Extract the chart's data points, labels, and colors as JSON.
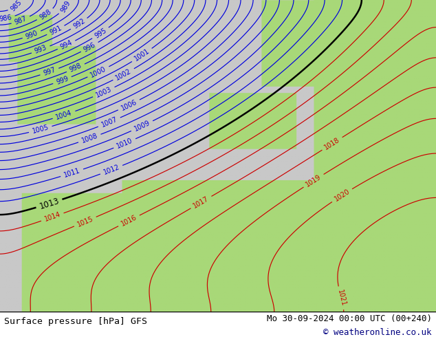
{
  "title_left": "Surface pressure [hPa] GFS",
  "title_right": "Mo 30-09-2024 00:00 UTC (00+240)",
  "copyright": "© weatheronline.co.uk",
  "bg_color_land": "#a8d878",
  "bg_color_sea": "#c8c8c8",
  "contour_blue_color": "#0000dd",
  "contour_black_color": "#000000",
  "contour_red_color": "#cc0000",
  "bottom_bar_height": 0.075,
  "fig_width": 6.34,
  "fig_height": 4.9,
  "dpi": 100,
  "label_fontsize": 7.0,
  "title_fontsize": 9.5
}
